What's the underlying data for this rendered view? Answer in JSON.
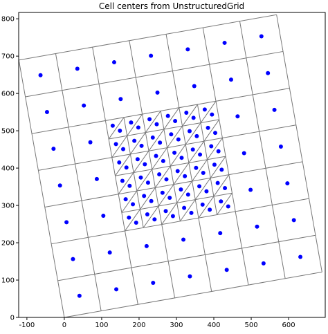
{
  "chart_data": {
    "type": "scatter",
    "title": "Cell centers from UnstructuredGrid",
    "color": "#0000ff",
    "x": [
      40.6,
      139.1,
      237.6,
      336.0,
      434.5,
      533.0,
      631.5,
      23.2,
      121.7,
      220.2,
      318.6,
      417.1,
      515.6,
      614.1,
      5.9,
      104.4,
      498.3,
      596.8,
      -11.5,
      87.0,
      480.9,
      579.4,
      -28.8,
      69.7,
      463.6,
      562.1,
      -46.2,
      52.3,
      150.8,
      249.2,
      347.7,
      446.2,
      544.7,
      -63.6,
      34.9,
      133.4,
      231.8,
      330.3,
      428.8,
      527.3,
      192.2,
      172.9,
      241.4,
      222.1,
      290.6,
      271.4,
      339.9,
      320.6,
      389.1,
      369.9,
      438.4,
      419.1,
      183.5,
      164.2,
      232.7,
      213.4,
      281.9,
      262.7,
      331.2,
      311.9,
      380.4,
      361.2,
      429.7,
      410.4,
      174.8,
      155.5,
      224.0,
      204.7,
      273.2,
      254.0,
      322.5,
      303.2,
      371.7,
      352.5,
      421.0,
      401.7,
      166.2,
      146.9,
      215.4,
      196.1,
      264.6,
      245.4,
      313.9,
      294.6,
      363.1,
      343.9,
      412.4,
      393.1,
      157.5,
      138.2,
      206.7,
      187.4,
      255.9,
      236.7,
      305.2,
      285.9,
      354.4,
      335.2,
      403.7,
      384.4,
      148.8,
      129.5,
      198.0,
      178.7,
      247.2,
      228.0,
      296.5,
      277.2,
      345.7,
      326.5,
      395.0,
      375.7
    ],
    "values": [
      57.9,
      75.3,
      92.6,
      110.0,
      127.3,
      144.7,
      162.1,
      156.4,
      173.8,
      191.1,
      208.5,
      225.8,
      243.2,
      260.6,
      254.9,
      272.3,
      341.7,
      359.1,
      353.3,
      370.7,
      440.1,
      457.5,
      451.8,
      469.2,
      538.6,
      556.0,
      550.3,
      567.7,
      585.0,
      602.4,
      619.7,
      637.1,
      654.5,
      648.8,
      666.2,
      683.5,
      700.9,
      718.2,
      735.6,
      753.0,
      253.9,
      267.4,
      262.6,
      276.1,
      271.3,
      284.8,
      279.9,
      293.5,
      288.6,
      302.1,
      297.3,
      310.8,
      303.1,
      316.6,
      311.8,
      325.3,
      320.5,
      334.0,
      329.1,
      342.7,
      337.8,
      351.3,
      346.5,
      360.0,
      352.4,
      365.9,
      361.1,
      374.6,
      369.8,
      383.3,
      378.4,
      392.0,
      387.1,
      400.6,
      395.8,
      409.3,
      401.6,
      415.1,
      410.3,
      423.8,
      419.0,
      432.5,
      427.6,
      441.2,
      436.3,
      449.8,
      445.0,
      458.5,
      450.9,
      464.4,
      459.6,
      473.1,
      468.3,
      481.8,
      476.9,
      490.5,
      485.6,
      499.1,
      494.3,
      507.8,
      500.1,
      513.6,
      508.8,
      522.3,
      517.5,
      531.0,
      526.1,
      539.7,
      534.8,
      548.3,
      543.5,
      557.0
    ],
    "xlim": [
      -122,
      698
    ],
    "ylim": [
      0,
      817
    ],
    "xticks": [
      -100,
      0,
      100,
      200,
      300,
      400,
      500,
      600
    ],
    "yticks": [
      0,
      100,
      200,
      300,
      400,
      500,
      600,
      700,
      800
    ]
  }
}
